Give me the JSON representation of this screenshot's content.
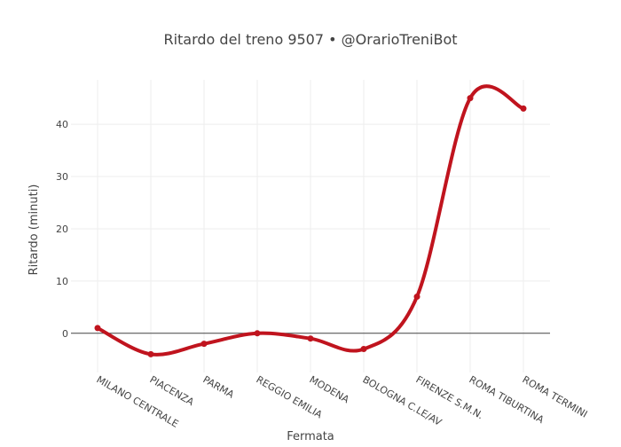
{
  "chart_data": {
    "type": "line",
    "title": "Ritardo del treno 9507 • @OrarioTreniBot",
    "xlabel": "Fermata",
    "ylabel": "Ritardo (minuti)",
    "categories": [
      "MILANO CENTRALE",
      "PIACENZA",
      "PARMA",
      "REGGIO EMILIA",
      "MODENA",
      "BOLOGNA C.LE/AV",
      "FIRENZE S.M.N.",
      "ROMA TIBURTINA",
      "ROMA TERMINI"
    ],
    "values": [
      1,
      -4,
      -2,
      0,
      -1,
      -3,
      7,
      45,
      43
    ],
    "ylim": [
      -7.5,
      48.5
    ],
    "yticks": [
      0,
      10,
      20,
      30,
      40
    ],
    "ytick_labels": [
      "0",
      "10",
      "20",
      "30",
      "40"
    ],
    "line_shape": "spline",
    "grid": true,
    "color": "#c0141e"
  }
}
